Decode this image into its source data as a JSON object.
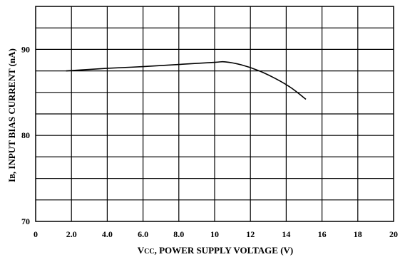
{
  "chart_data": {
    "type": "line",
    "xlabel_prefix": "V",
    "xlabel_subscript": "CC",
    "xlabel_rest": ", POWER SUPPLY VOLTAGE (V)",
    "ylabel_prefix": "I",
    "ylabel_subscript": "B",
    "ylabel_rest": ", INPUT BIAS CURRENT (nA)",
    "xlim": [
      0,
      20
    ],
    "ylim": [
      70,
      95
    ],
    "x_ticks": [
      {
        "value": 0,
        "label": "0"
      },
      {
        "value": 2,
        "label": "2.0"
      },
      {
        "value": 4,
        "label": "4.0"
      },
      {
        "value": 6,
        "label": "6.0"
      },
      {
        "value": 8,
        "label": "8.0"
      },
      {
        "value": 10,
        "label": "10"
      },
      {
        "value": 12,
        "label": "12"
      },
      {
        "value": 14,
        "label": "14"
      },
      {
        "value": 16,
        "label": "16"
      },
      {
        "value": 18,
        "label": "18"
      },
      {
        "value": 20,
        "label": "20"
      }
    ],
    "y_ticks": [
      {
        "value": 70,
        "label": "70"
      },
      {
        "value": 80,
        "label": "80"
      },
      {
        "value": 90,
        "label": "90"
      }
    ],
    "grid": true,
    "x_grid_step": 2,
    "y_grid_step": 2.5,
    "series": [
      {
        "color": "#000000",
        "points": [
          {
            "x": 1.7,
            "y": 87.5
          },
          {
            "x": 4.0,
            "y": 87.8
          },
          {
            "x": 6.0,
            "y": 88.0
          },
          {
            "x": 8.0,
            "y": 88.25
          },
          {
            "x": 10.0,
            "y": 88.5
          },
          {
            "x": 10.6,
            "y": 88.55
          },
          {
            "x": 11.5,
            "y": 88.2
          },
          {
            "x": 12.5,
            "y": 87.5
          },
          {
            "x": 13.5,
            "y": 86.5
          },
          {
            "x": 14.3,
            "y": 85.5
          },
          {
            "x": 15.1,
            "y": 84.2
          }
        ]
      }
    ]
  }
}
